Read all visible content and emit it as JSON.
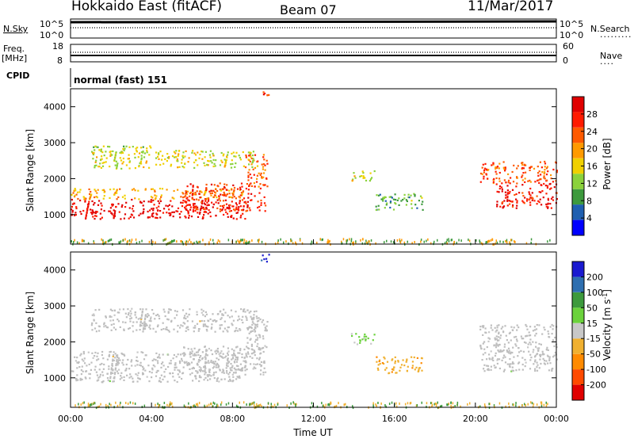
{
  "header": {
    "station": "Hokkaido East (fitACF)",
    "beam": "Beam 07",
    "date": "11/Mar/2017"
  },
  "summary": {
    "nsky_label": "N.Sky",
    "nsearch_label": "N.Search",
    "freq_label": "Freq.",
    "freq_unit": "[MHz]",
    "nave_label": "Nave",
    "cpid_label": "CPID",
    "cpid_value": "normal (fast) 151",
    "noise_ticks_left": [
      "10^5",
      "10^0"
    ],
    "noise_ticks_right": [
      "10^5",
      "10^0"
    ],
    "freq_ticks": [
      "18",
      "8"
    ],
    "nave_ticks": [
      "60",
      "0"
    ]
  },
  "colors": {
    "power_scale": [
      "#0000ff",
      "#1f5fb0",
      "#3d9a3d",
      "#8bd23c",
      "#f0d000",
      "#ff9a00",
      "#ff5a00",
      "#ff1a00",
      "#e00000"
    ],
    "velocity_scale": [
      "#e00000",
      "#ff4a00",
      "#ff8a00",
      "#f0b030",
      "#c8c8c8",
      "#6bd23c",
      "#3d9a3d",
      "#2e6fb0",
      "#1a1ad0"
    ],
    "ground_scatter": "#bebebe"
  },
  "chart_data": [
    {
      "type": "heatmap",
      "name": "power-panel",
      "ylabel": "Slant Range [km]",
      "ylim": [
        180,
        4500
      ],
      "xlim": [
        "00:00",
        "24:00"
      ],
      "yticks": [
        "4000",
        "3000",
        "2000",
        "1000"
      ],
      "colorbar": {
        "label": "Power [dB]",
        "ticks": [
          "28",
          "24",
          "20",
          "16",
          "12",
          "8",
          "4"
        ],
        "range": [
          0,
          30
        ]
      },
      "regions": [
        {
          "t0": 0.0,
          "t1": 8.6,
          "r0": 900,
          "r1": 1450,
          "value": 28
        },
        {
          "t0": 0.0,
          "t1": 8.6,
          "r0": 1450,
          "r1": 1750,
          "value": 18
        },
        {
          "t0": 5.5,
          "t1": 9.6,
          "r0": 1100,
          "r1": 1900,
          "value": 24
        },
        {
          "t0": 8.6,
          "t1": 9.7,
          "r0": 1800,
          "r1": 2700,
          "value": 22
        },
        {
          "t0": 1.0,
          "t1": 9.2,
          "r0": 2300,
          "r1": 2800,
          "value": 14
        },
        {
          "t0": 1.0,
          "t1": 4.0,
          "r0": 2750,
          "r1": 2950,
          "value": 12
        },
        {
          "t0": 9.4,
          "t1": 9.9,
          "r0": 4250,
          "r1": 4450,
          "value": 26
        },
        {
          "t0": 13.8,
          "t1": 15.0,
          "r0": 1950,
          "r1": 2250,
          "value": 14
        },
        {
          "t0": 15.0,
          "t1": 17.4,
          "r0": 1150,
          "r1": 1600,
          "value": 10
        },
        {
          "t0": 20.2,
          "t1": 24.0,
          "r0": 1900,
          "r1": 2500,
          "value": 22
        },
        {
          "t0": 21.0,
          "t1": 24.0,
          "r0": 1200,
          "r1": 1900,
          "value": 26
        }
      ]
    },
    {
      "type": "heatmap",
      "name": "velocity-panel",
      "ylabel": "Slant Range [km]",
      "xlabel": "Time UT",
      "ylim": [
        180,
        4500
      ],
      "xlim": [
        "00:00",
        "24:00"
      ],
      "yticks": [
        "4000",
        "3000",
        "2000",
        "1000"
      ],
      "xticks": [
        "00:00",
        "04:00",
        "08:00",
        "12:00",
        "16:00",
        "20:00",
        "00:00"
      ],
      "colorbar": {
        "label": "Velocity [m s-1]",
        "label_main": "Velocity [m s",
        "label_sup": "-1",
        "label_end": "]",
        "ticks": [
          "200",
          "100",
          "50",
          "15",
          "-15",
          "-50",
          "-100",
          "-200"
        ],
        "range": [
          -250,
          250
        ]
      },
      "regions": [
        {
          "t0": 0.0,
          "t1": 8.7,
          "r0": 900,
          "r1": 1750,
          "value": 0
        },
        {
          "t0": 5.5,
          "t1": 9.6,
          "r0": 1100,
          "r1": 1900,
          "value": 0
        },
        {
          "t0": 8.6,
          "t1": 9.7,
          "r0": 1800,
          "r1": 2700,
          "value": 0
        },
        {
          "t0": 1.0,
          "t1": 9.2,
          "r0": 2300,
          "r1": 2950,
          "value": 0
        },
        {
          "t0": 9.4,
          "t1": 9.9,
          "r0": 4250,
          "r1": 4450,
          "value": 210
        },
        {
          "t0": 13.8,
          "t1": 15.0,
          "r0": 1950,
          "r1": 2250,
          "value": 40
        },
        {
          "t0": 15.0,
          "t1": 17.4,
          "r0": 1150,
          "r1": 1600,
          "value": -60
        },
        {
          "t0": 20.2,
          "t1": 24.0,
          "r0": 1200,
          "r1": 2500,
          "value": 0
        }
      ]
    }
  ]
}
